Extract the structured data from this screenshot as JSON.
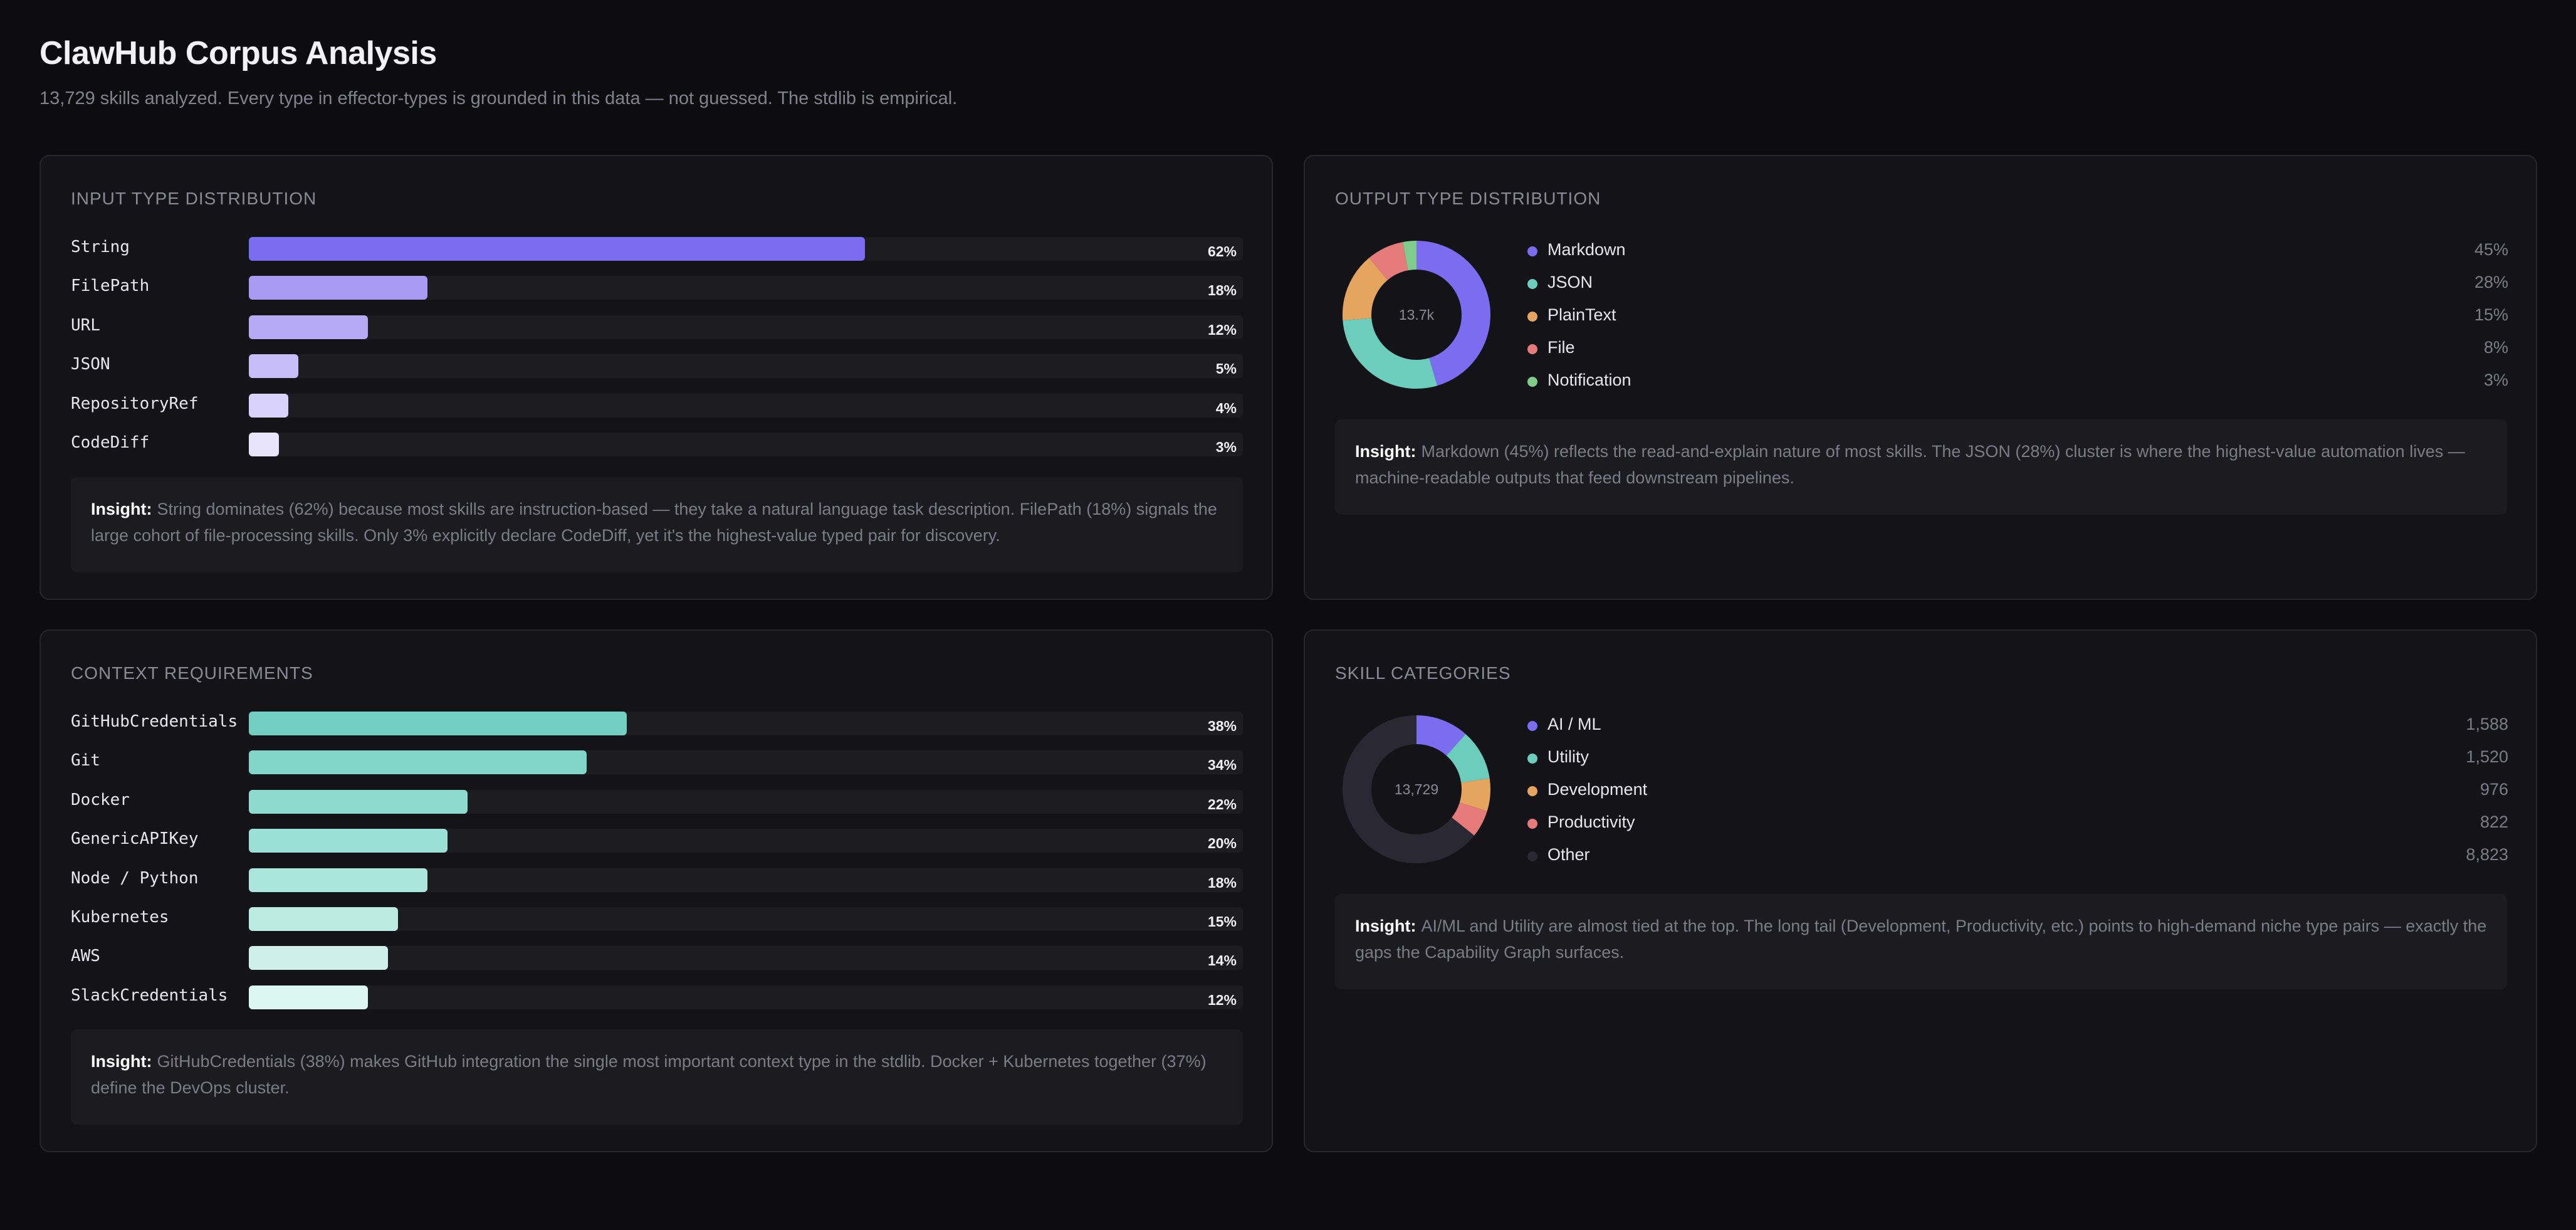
{
  "header": {
    "title": "ClawHub Corpus Analysis",
    "subtitle": "13,729 skills analyzed. Every type in effector-types is grounded in this data — not guessed. The stdlib is empirical."
  },
  "insight_label": "Insight:",
  "colors": {
    "background": "#0d0d10",
    "card": "#141418",
    "purple": "#7b6cf0",
    "teal": "#6ccdbd",
    "orange": "#e6a55e",
    "pink": "#e57b7b",
    "green": "#7fcc8c",
    "other": "#2a2833"
  },
  "chart_data": [
    {
      "type": "bar",
      "title": "INPUT TYPE DISTRIBUTION",
      "categories": [
        "String",
        "FilePath",
        "URL",
        "JSON",
        "RepositoryRef",
        "CodeDiff"
      ],
      "values": [
        62,
        18,
        12,
        5,
        4,
        3
      ],
      "value_labels": [
        "62%",
        "18%",
        "12%",
        "5%",
        "4%",
        "3%"
      ],
      "colors": [
        "#7b6cf0",
        "#a89af2",
        "#b6aaf4",
        "#c7bef7",
        "#d8d1fa",
        "#e8e4fc"
      ],
      "xlim": [
        0,
        100
      ],
      "insight": "String dominates (62%) because most skills are instruction-based — they take a natural language task description. FilePath (18%) signals the large cohort of file-processing skills. Only 3% explicitly declare CodeDiff, yet it's the highest-value typed pair for discovery."
    },
    {
      "type": "pie",
      "title": "OUTPUT TYPE DISTRIBUTION",
      "center_label": "13.7k",
      "categories": [
        "Markdown",
        "JSON",
        "PlainText",
        "File",
        "Notification"
      ],
      "values": [
        45,
        28,
        15,
        8,
        3
      ],
      "value_labels": [
        "45%",
        "28%",
        "15%",
        "8%",
        "3%"
      ],
      "colors": [
        "#7b6cf0",
        "#6ccdbd",
        "#e6a55e",
        "#e57b7b",
        "#7fcc8c"
      ],
      "insight": "Markdown (45%) reflects the read-and-explain nature of most skills. The JSON (28%) cluster is where the highest-value automation lives — machine-readable outputs that feed downstream pipelines."
    },
    {
      "type": "bar",
      "title": "CONTEXT REQUIREMENTS",
      "categories": [
        "GitHubCredentials",
        "Git",
        "Docker",
        "GenericAPIKey",
        "Node / Python",
        "Kubernetes",
        "AWS",
        "SlackCredentials"
      ],
      "values": [
        38,
        34,
        22,
        20,
        18,
        15,
        14,
        12
      ],
      "value_labels": [
        "38%",
        "34%",
        "22%",
        "20%",
        "18%",
        "15%",
        "14%",
        "12%"
      ],
      "colors": [
        "#72cfc1",
        "#80d5c8",
        "#8ddbcf",
        "#9be0d6",
        "#abe6dd",
        "#bcebe4",
        "#cdf0eb",
        "#dcf6f2"
      ],
      "xlim": [
        0,
        100
      ],
      "insight": "GitHubCredentials (38%) makes GitHub integration the single most important context type in the stdlib. Docker + Kubernetes together (37%) define the DevOps cluster."
    },
    {
      "type": "pie",
      "title": "SKILL CATEGORIES",
      "center_label": "13,729",
      "categories": [
        "AI / ML",
        "Utility",
        "Development",
        "Productivity",
        "Other"
      ],
      "values": [
        1588,
        1520,
        976,
        822,
        8823
      ],
      "value_labels": [
        "1,588",
        "1,520",
        "976",
        "822",
        "8,823"
      ],
      "colors": [
        "#7b6cf0",
        "#6ccdbd",
        "#e6a55e",
        "#e57b7b",
        "#2a2833"
      ],
      "insight": "AI/ML and Utility are almost tied at the top. The long tail (Development, Productivity, etc.) points to high-demand niche type pairs — exactly the gaps the Capability Graph surfaces."
    }
  ]
}
